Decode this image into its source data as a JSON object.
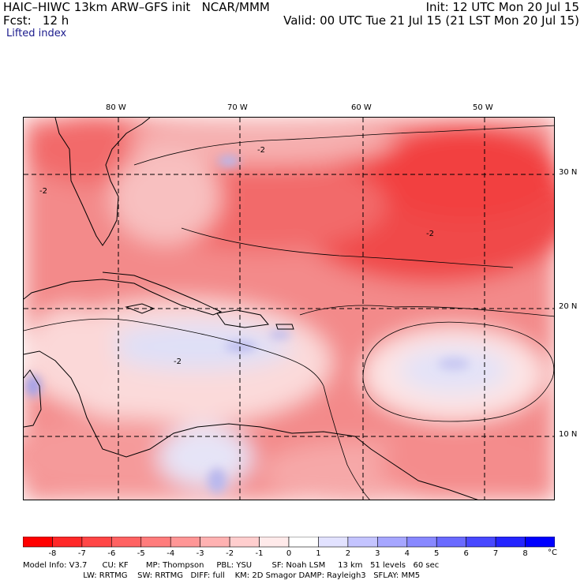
{
  "header": {
    "title_left": "HAIC–HIWC 13km ARW–GFS init   NCAR/MMM",
    "fcst": "Fcst:   12 h",
    "init": "Init: 12 UTC Mon 20 Jul 15",
    "valid": "Valid: 00 UTC Tue 21 Jul 15 (21 LST Mon 20 Jul 15)",
    "field": "Lifted index"
  },
  "map": {
    "lon_labels": [
      "80 W",
      "70 W",
      "60 W",
      "50 W"
    ],
    "lat_labels": [
      "30 N",
      "20 N",
      "10 N"
    ],
    "lon_lines": [
      -80,
      -70,
      -60,
      -50
    ],
    "lat_lines": [
      30,
      20,
      10
    ],
    "contour_labels": [
      "-2",
      "-2",
      "-2",
      "-2"
    ],
    "colors": {
      "neg_strong": "#ff2020",
      "neg_mid": "#f46a6a",
      "neg_weak": "#f8b4b4",
      "near_zero": "#fde4e4",
      "pos_weak": "#d6d6f6",
      "pos_mid": "#8a8ae8",
      "pos_strong": "#0000e6"
    }
  },
  "colorbar": {
    "labels": [
      "-8",
      "-7",
      "-6",
      "-5",
      "-4",
      "-3",
      "-2",
      "-1",
      "0",
      "1",
      "2",
      "3",
      "4",
      "5",
      "6",
      "7",
      "8"
    ],
    "unit": "°C",
    "colors": [
      "#ff0000",
      "#ff2828",
      "#ff4646",
      "#ff6262",
      "#ff7c7c",
      "#ff9696",
      "#ffb2b2",
      "#ffcece",
      "#ffeaea",
      "#ffffff",
      "#e2e2ff",
      "#c4c4ff",
      "#a6a6ff",
      "#8888ff",
      "#6a6aff",
      "#4848ff",
      "#2424ff",
      "#0000ff"
    ]
  },
  "footer": {
    "line1": "Model Info: V3.7      CU: KF       MP: Thompson     PBL: YSU        SF: Noah LSM     13 km   51 levels   60 sec",
    "line2": "                        LW: RRTMG    SW: RRTMG   DIFF: full    KM: 2D Smagor DAMP: Rayleigh3   SFLAY: MM5"
  }
}
